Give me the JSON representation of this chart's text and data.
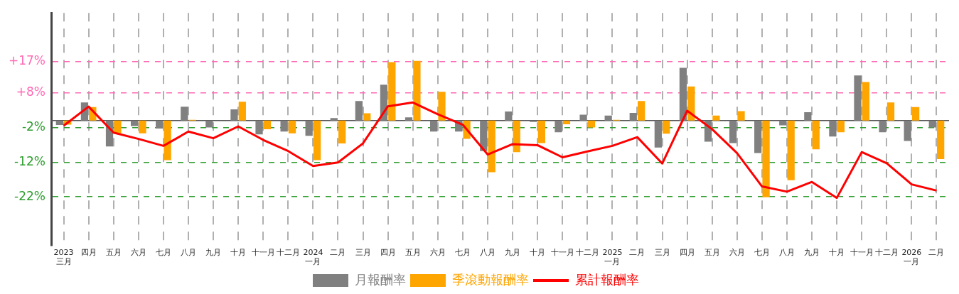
{
  "chart_data": {
    "type": "bar",
    "categories": [
      "2023\n三月",
      "四月",
      "五月",
      "六月",
      "七月",
      "八月",
      "九月",
      "十月",
      "十一月",
      "十二月",
      "2024\n一月",
      "二月",
      "三月",
      "四月",
      "五月",
      "六月",
      "七月",
      "八月",
      "九月",
      "十月",
      "十一月",
      "十二月",
      "2025\n一月",
      "二月",
      "三月",
      "四月",
      "五月",
      "六月",
      "七月",
      "八月",
      "九月",
      "十月",
      "十一月",
      "十二月",
      "2026\n一月",
      "二月"
    ],
    "series": [
      {
        "name": "月報酬率",
        "color": "#808080",
        "values": [
          -1.3,
          5.2,
          -7.5,
          -1.6,
          -2.3,
          4.0,
          -2.0,
          3.2,
          -4.0,
          -3.2,
          -4.4,
          0.7,
          5.6,
          10.3,
          0.9,
          -3.2,
          -3.2,
          -8.8,
          2.6,
          -0.4,
          -3.4,
          1.7,
          1.4,
          2.2,
          -7.8,
          15.2,
          -6.1,
          -6.5,
          -9.4,
          -1.4,
          2.4,
          -4.6,
          13.0,
          -3.4,
          -5.9,
          -2.0
        ]
      },
      {
        "name": "季滾動報酬率",
        "color": "#ffa500",
        "values": [
          -1.2,
          3.9,
          -3.7,
          -3.7,
          -11.4,
          0.2,
          0,
          5.4,
          -2.5,
          -3.7,
          -11.4,
          -6.6,
          2.1,
          16.8,
          17.2,
          8.3,
          -5.3,
          -14.9,
          -9.1,
          -6.5,
          -1.1,
          -2.0,
          0.2,
          5.6,
          -3.8,
          9.8,
          1.4,
          2.7,
          -22.1,
          -17.2,
          -8.3,
          -3.4,
          11.1,
          5.2,
          3.9,
          -11.1
        ]
      },
      {
        "name": "累計報酬率",
        "type": "line",
        "color": "#ff0000",
        "values": [
          -1.5,
          4.0,
          -3.5,
          -5.3,
          -7.3,
          -3.2,
          -5.1,
          -1.7,
          -5.6,
          -8.8,
          -13.1,
          -12.1,
          -6.6,
          4.1,
          5.2,
          1.8,
          -1.2,
          -9.8,
          -6.8,
          -7.1,
          -10.6,
          -8.9,
          -7.3,
          -4.8,
          -12.4,
          2.8,
          -2.5,
          -9.4,
          -19.0,
          -20.5,
          -17.7,
          -22.3,
          -9.1,
          -12.3,
          -18.4,
          -20.2
        ]
      }
    ],
    "ylim": [
      -36,
      31
    ],
    "yticks": [
      {
        "value": 17,
        "label": "+17%"
      },
      {
        "value": 8,
        "label": "+8%"
      },
      {
        "value": -2,
        "label": "-2%"
      },
      {
        "value": -12,
        "label": "-12%"
      },
      {
        "value": -22,
        "label": "-22%"
      }
    ],
    "ref_lines": [
      {
        "axis": "y",
        "value": 0,
        "label": null,
        "color": "#555555",
        "line_style": "solid"
      }
    ],
    "grid": true,
    "legend": "bottom",
    "marker": "none",
    "line_style": "solid"
  }
}
